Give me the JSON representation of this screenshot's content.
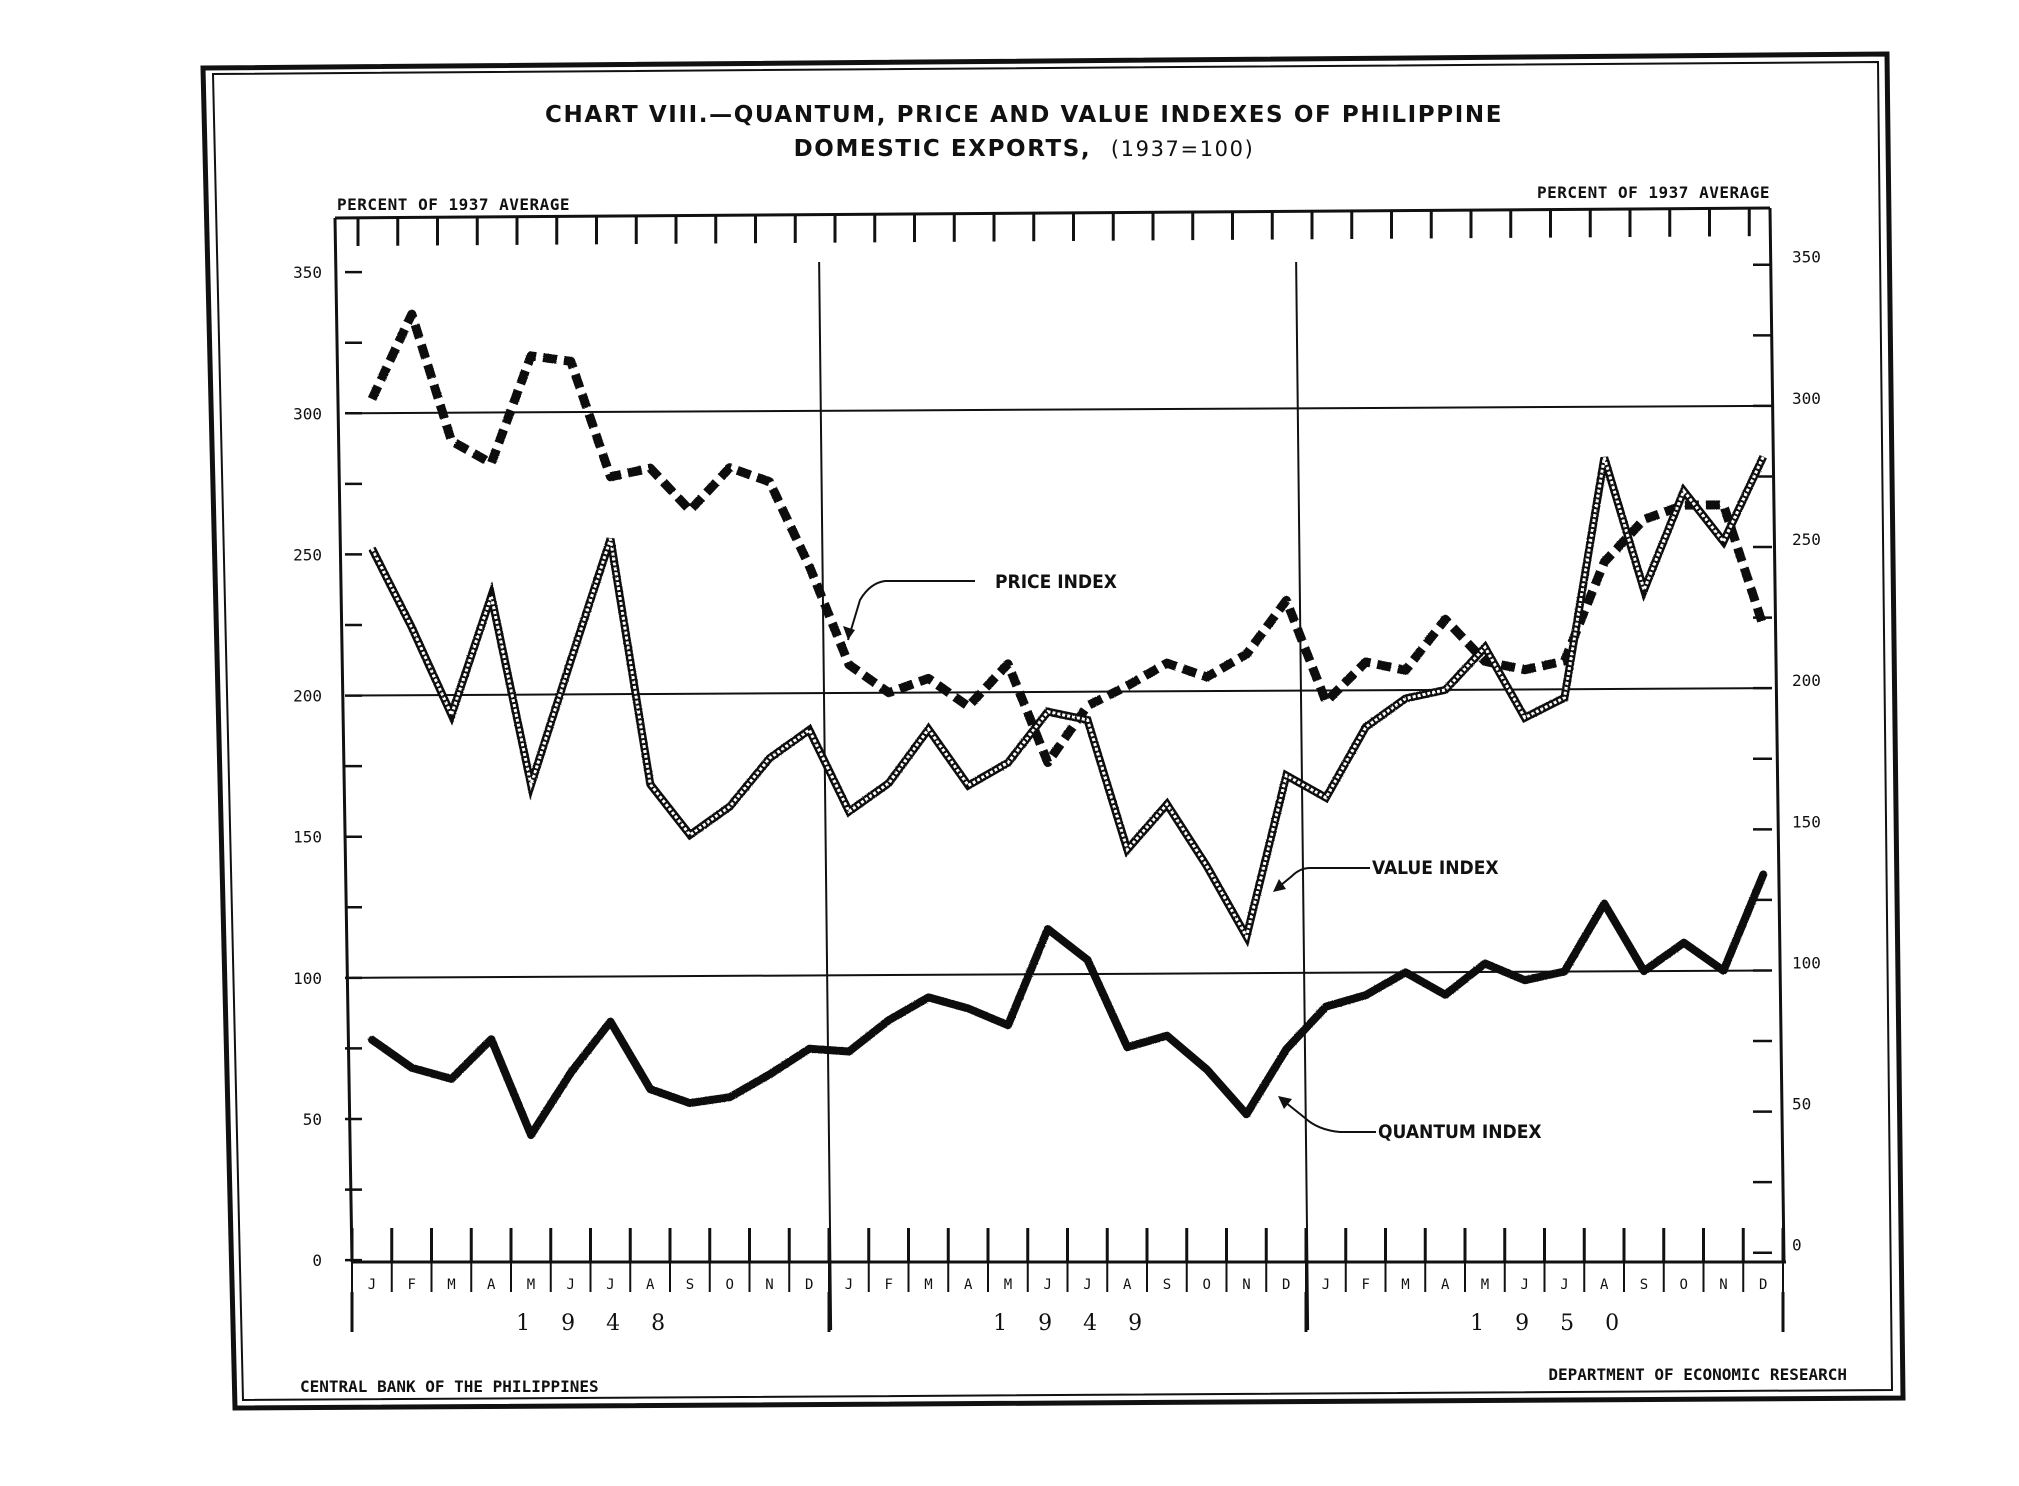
{
  "title_line1": "CHART VIII.—QUANTUM, PRICE AND VALUE INDEXES OF PHILIPPINE",
  "title_line2": "DOMESTIC EXPORTS,",
  "title_base": "(1937=100)",
  "footer_left": "CENTRAL BANK OF THE PHILIPPINES",
  "footer_right": "DEPARTMENT OF ECONOMIC RESEARCH",
  "chart_data": {
    "type": "line",
    "title": "CHART VIII.—QUANTUM, PRICE AND VALUE INDEXES OF PHILIPPINE DOMESTIC EXPORTS, (1937=100)",
    "ylabel_left": "PERCENT OF 1937 AVERAGE",
    "ylabel_right": "PERCENT OF 1937 AVERAGE",
    "ylim": [
      0,
      370
    ],
    "yticks": [
      0,
      50,
      100,
      150,
      200,
      250,
      300,
      350
    ],
    "reference_lines": [
      100,
      200,
      300
    ],
    "years": [
      "1 9 4 8",
      "1 9 4 9",
      "1 9 5 0"
    ],
    "month_labels": [
      "J",
      "F",
      "M",
      "A",
      "M",
      "J",
      "J",
      "A",
      "S",
      "O",
      "N",
      "D"
    ],
    "x": [
      "1948-01",
      "1948-02",
      "1948-03",
      "1948-04",
      "1948-05",
      "1948-06",
      "1948-07",
      "1948-08",
      "1948-09",
      "1948-10",
      "1948-11",
      "1948-12",
      "1949-01",
      "1949-02",
      "1949-03",
      "1949-04",
      "1949-05",
      "1949-06",
      "1949-07",
      "1949-08",
      "1949-09",
      "1949-10",
      "1949-11",
      "1949-12",
      "1950-01",
      "1950-02",
      "1950-03",
      "1950-04",
      "1950-05",
      "1950-06",
      "1950-07",
      "1950-08",
      "1950-09",
      "1950-10",
      "1950-11",
      "1950-12"
    ],
    "grid": false,
    "series": [
      {
        "name": "PRICE INDEX",
        "style": "dashed",
        "values": [
          305,
          335,
          290,
          282,
          320,
          318,
          277,
          280,
          265,
          280,
          275,
          245,
          210,
          200,
          205,
          195,
          210,
          175,
          195,
          202,
          210,
          205,
          213,
          232,
          196,
          210,
          207,
          225,
          210,
          207,
          210,
          245,
          260,
          265,
          265,
          222
        ]
      },
      {
        "name": "VALUE INDEX",
        "style": "double",
        "values": [
          252,
          224,
          193,
          235,
          168,
          212,
          255,
          168,
          150,
          160,
          177,
          187,
          158,
          168,
          187,
          167,
          175,
          193,
          190,
          144,
          160,
          138,
          113,
          170,
          162,
          187,
          197,
          200,
          215,
          190,
          197,
          282,
          235,
          270,
          252,
          282
        ]
      },
      {
        "name": "QUANTUM INDEX",
        "style": "solid-heavy",
        "values": [
          78,
          68,
          64,
          78,
          44,
          66,
          84,
          60,
          55,
          57,
          65,
          74,
          73,
          84,
          92,
          88,
          82,
          116,
          105,
          74,
          78,
          66,
          50,
          73,
          88,
          92,
          100,
          92,
          103,
          97,
          100,
          124,
          100,
          110,
          100,
          134
        ]
      }
    ]
  }
}
